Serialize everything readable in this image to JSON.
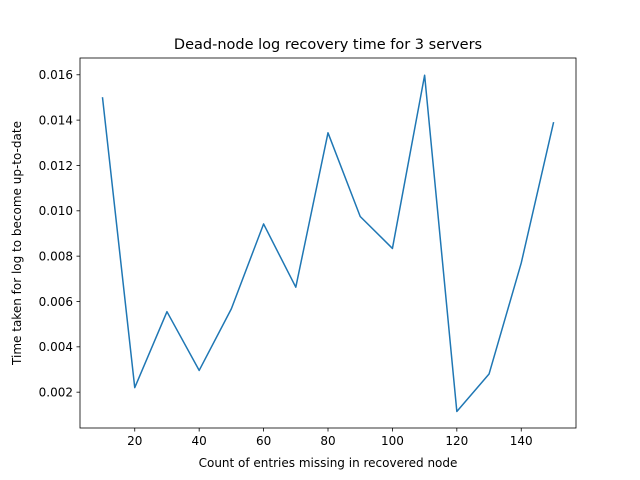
{
  "chart_data": {
    "type": "line",
    "title": "Dead-node log recovery time for 3 servers",
    "xlabel": "Count of entries missing in recovered node",
    "ylabel": "Time taken for log to become up-to-date",
    "xlim": [
      3.0,
      157.0
    ],
    "ylim": [
      0.00042,
      0.01674
    ],
    "x_ticks": [
      20,
      40,
      60,
      80,
      100,
      120,
      140
    ],
    "x_tick_labels": [
      "20",
      "40",
      "60",
      "80",
      "100",
      "120",
      "140"
    ],
    "y_ticks": [
      0.002,
      0.004,
      0.006,
      0.008,
      0.01,
      0.012,
      0.014,
      0.016
    ],
    "y_tick_labels": [
      "0.002",
      "0.004",
      "0.006",
      "0.008",
      "0.010",
      "0.012",
      "0.014",
      "0.016"
    ],
    "grid": false,
    "legend": "none",
    "series": [
      {
        "color": "#1f77b4",
        "x": [
          10,
          20,
          30,
          40,
          50,
          60,
          70,
          80,
          90,
          100,
          110,
          120,
          130,
          140,
          150
        ],
        "y": [
          0.01498,
          0.0022,
          0.00555,
          0.00296,
          0.00568,
          0.00942,
          0.00663,
          0.01344,
          0.00975,
          0.00834,
          0.01598,
          0.00115,
          0.0028,
          0.0077,
          0.01388
        ]
      }
    ]
  }
}
